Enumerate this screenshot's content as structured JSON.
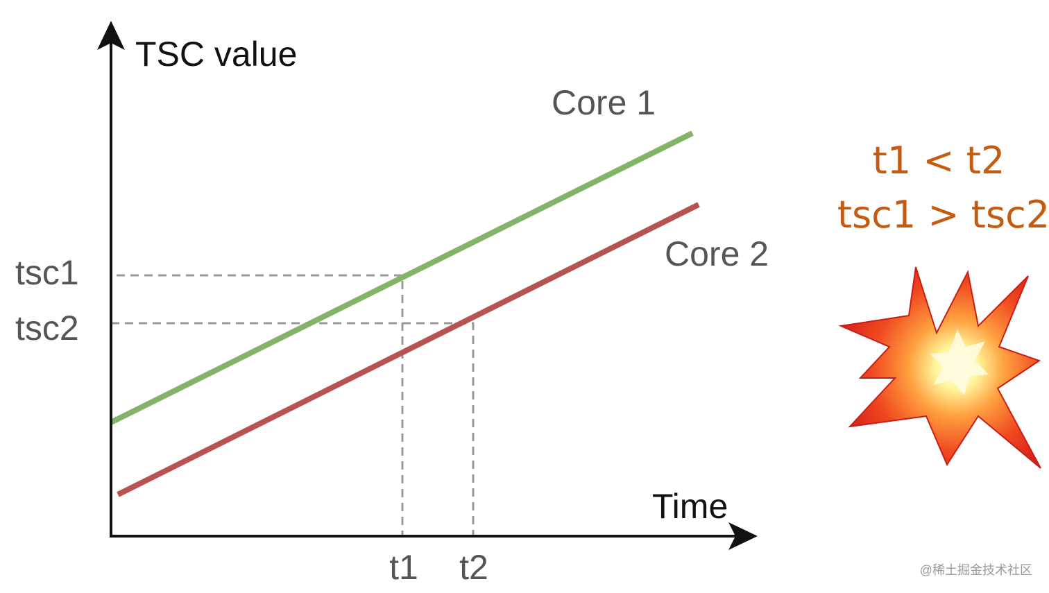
{
  "diagram": {
    "y_axis_label": "TSC value",
    "x_axis_label": "Time",
    "lines": [
      {
        "label": "Core 1"
      },
      {
        "label": "Core 2"
      }
    ],
    "y_marks": [
      "tsc1",
      "tsc2"
    ],
    "x_marks": [
      "t1",
      "t2"
    ],
    "notes": [
      "t1 < t2",
      "tsc1 > tsc2"
    ],
    "watermark": "@稀土掘金技术社区"
  }
}
